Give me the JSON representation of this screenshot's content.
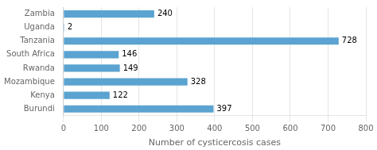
{
  "chart_data": {
    "type": "bar",
    "orientation": "horizontal",
    "categories": [
      "Burundi",
      "Kenya",
      "Mozambique",
      "Rwanda",
      "South Africa",
      "Tanzania",
      "Uganda",
      "Zambia"
    ],
    "values": [
      397,
      122,
      328,
      149,
      146,
      728,
      2,
      240
    ],
    "color": "#5ba3d0",
    "xlabel": "Number of cysticercosis cases",
    "xlim": [
      0,
      800
    ],
    "xticks": [
      0,
      100,
      200,
      300,
      400,
      500,
      600,
      700,
      800
    ],
    "grid": true,
    "data_labels": true
  }
}
